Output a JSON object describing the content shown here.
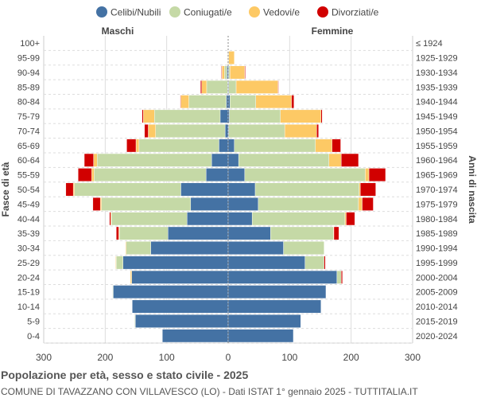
{
  "chart_data": {
    "type": "bar",
    "orientation": "horizontal-pyramid",
    "title": "Popolazione per età, sesso e stato civile - 2025",
    "subtitle": "COMUNE DI TAVAZZANO CON VILLAVESCO (LO) - Dati ISTAT 1° gennaio 2025 - TUTTITALIA.IT",
    "ylabel_left": "Fasce di età",
    "ylabel_right": "Anni di nascita",
    "left_label": "Maschi",
    "right_label": "Femmine",
    "xlim": [
      -300,
      300
    ],
    "xticks": [
      "300",
      "200",
      "100",
      "0",
      "100",
      "200",
      "300"
    ],
    "grid": true,
    "legend_placement": "top",
    "series_names": [
      "Celibi/Nubili",
      "Coniugati/e",
      "Vedovi/e",
      "Divorziati/e"
    ],
    "colors": [
      "#4472a4",
      "#c5d9a6",
      "#fdc965",
      "#d10000"
    ],
    "age_groups": [
      "100+",
      "95-99",
      "90-94",
      "85-89",
      "80-84",
      "75-79",
      "70-74",
      "65-69",
      "60-64",
      "55-59",
      "50-54",
      "45-49",
      "40-44",
      "35-39",
      "30-34",
      "25-29",
      "20-24",
      "15-19",
      "10-14",
      "5-9",
      "0-4"
    ],
    "birth_years": [
      "≤ 1924",
      "1925-1929",
      "1930-1934",
      "1935-1939",
      "1940-1944",
      "1945-1949",
      "1950-1954",
      "1955-1959",
      "1960-1964",
      "1965-1969",
      "1970-1974",
      "1975-1979",
      "1980-1984",
      "1985-1989",
      "1990-1994",
      "1995-1999",
      "2000-2004",
      "2005-2009",
      "2010-2014",
      "2015-2019",
      "2020-2024"
    ],
    "males": [
      [
        0,
        0,
        0,
        0
      ],
      [
        0,
        0,
        1,
        0
      ],
      [
        2,
        4,
        4,
        1
      ],
      [
        1,
        34,
        8,
        2
      ],
      [
        3,
        61,
        13,
        1
      ],
      [
        13,
        107,
        18,
        2
      ],
      [
        5,
        113,
        12,
        6
      ],
      [
        15,
        130,
        5,
        15
      ],
      [
        27,
        186,
        6,
        15
      ],
      [
        36,
        182,
        4,
        22
      ],
      [
        77,
        173,
        2,
        12
      ],
      [
        61,
        145,
        2,
        12
      ],
      [
        67,
        123,
        1,
        2
      ],
      [
        98,
        79,
        1,
        4
      ],
      [
        126,
        40,
        1,
        0
      ],
      [
        171,
        11,
        1,
        0
      ],
      [
        157,
        0,
        2,
        0
      ],
      [
        187,
        1,
        0,
        0
      ],
      [
        156,
        0,
        0,
        0
      ],
      [
        151,
        1,
        0,
        0
      ],
      [
        107,
        0,
        0,
        0
      ]
    ],
    "females": [
      [
        0,
        0,
        0,
        0
      ],
      [
        0,
        1,
        9,
        0
      ],
      [
        1,
        2,
        24,
        1
      ],
      [
        1,
        12,
        68,
        1
      ],
      [
        3,
        42,
        58,
        4
      ],
      [
        2,
        83,
        66,
        2
      ],
      [
        1,
        91,
        52,
        3
      ],
      [
        10,
        132,
        27,
        14
      ],
      [
        17,
        147,
        20,
        28
      ],
      [
        27,
        196,
        6,
        27
      ],
      [
        44,
        169,
        2,
        25
      ],
      [
        49,
        163,
        6,
        18
      ],
      [
        39,
        151,
        2,
        14
      ],
      [
        69,
        102,
        1,
        8
      ],
      [
        90,
        66,
        0,
        0
      ],
      [
        125,
        31,
        0,
        2
      ],
      [
        177,
        7,
        0,
        2
      ],
      [
        159,
        0,
        0,
        0
      ],
      [
        151,
        0,
        0,
        0
      ],
      [
        118,
        0,
        0,
        0
      ],
      [
        106,
        0,
        0,
        0
      ]
    ]
  }
}
